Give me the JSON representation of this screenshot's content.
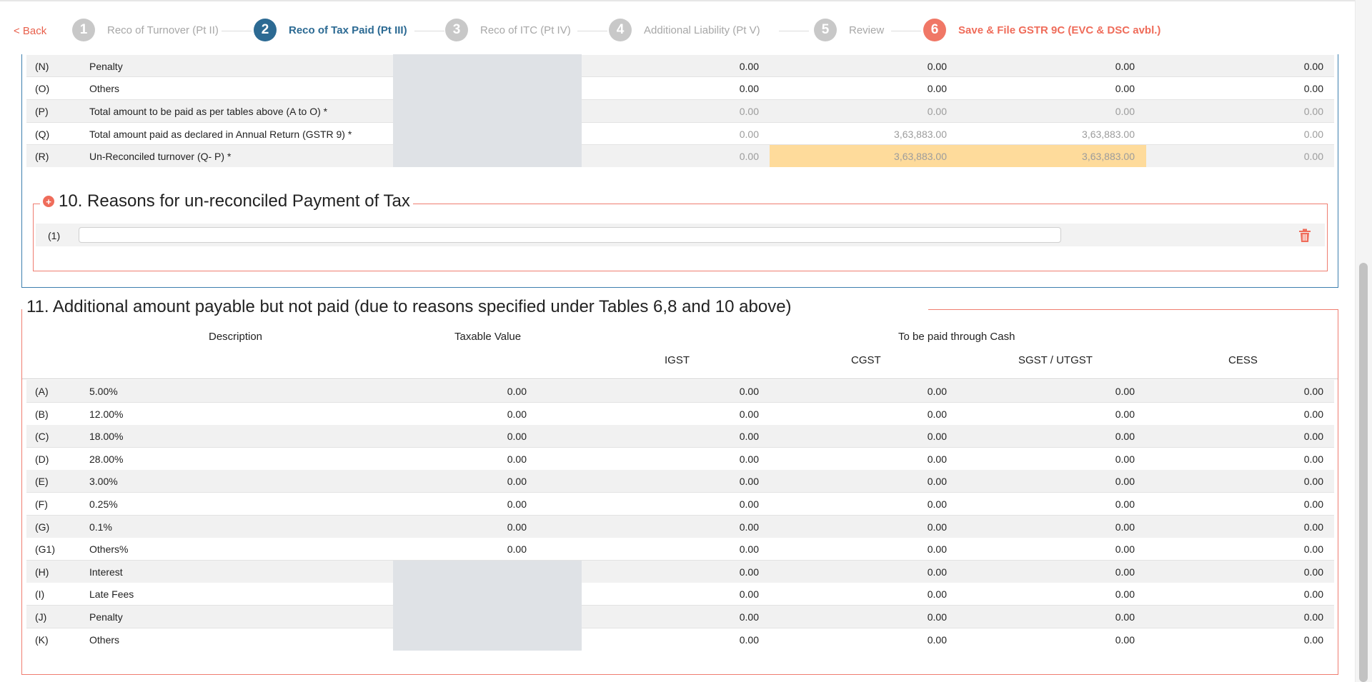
{
  "nav": {
    "back_label": "< Back",
    "steps": [
      {
        "num": "1",
        "label": "Reco of Turnover (Pt II)"
      },
      {
        "num": "2",
        "label": "Reco of Tax Paid (Pt III)"
      },
      {
        "num": "3",
        "label": "Reco of ITC (Pt IV)"
      },
      {
        "num": "4",
        "label": "Additional Liability (Pt V)"
      },
      {
        "num": "5",
        "label": "Review"
      },
      {
        "num": "6",
        "label": "Save & File GSTR 9C (EVC & DSC avbl.)"
      }
    ]
  },
  "section9": {
    "rows": [
      {
        "code": "(N)",
        "desc": "Penalty",
        "v1": "0.00",
        "v2": "0.00",
        "v3": "0.00",
        "v4": "0.00"
      },
      {
        "code": "(O)",
        "desc": "Others",
        "v1": "0.00",
        "v2": "0.00",
        "v3": "0.00",
        "v4": "0.00"
      },
      {
        "code": "(P)",
        "desc": "Total amount to be paid as per tables above (A to O) *",
        "v1": "0.00",
        "v2": "0.00",
        "v3": "0.00",
        "v4": "0.00"
      },
      {
        "code": "(Q)",
        "desc": "Total amount paid as declared in Annual Return (GSTR 9) *",
        "v1": "0.00",
        "v2": "3,63,883.00",
        "v3": "3,63,883.00",
        "v4": "0.00"
      },
      {
        "code": "(R)",
        "desc": "Un-Reconciled turnover (Q- P) *",
        "v1": "0.00",
        "v2": "3,63,883.00",
        "v3": "3,63,883.00",
        "v4": "0.00"
      }
    ]
  },
  "section10": {
    "title": "10. Reasons for un-reconciled Payment of Tax",
    "plus_glyph": "+",
    "reason_code": "(1)",
    "reason_value": ""
  },
  "section11": {
    "title": "11. Additional amount payable but not paid (due to reasons specified under Tables 6,8 and 10 above)",
    "headers": {
      "description": "Description",
      "taxable_value": "Taxable Value",
      "group": "To be paid through Cash",
      "igst": "IGST",
      "cgst": "CGST",
      "sgst": "SGST / UTGST",
      "cess": "CESS"
    },
    "rows": [
      {
        "code": "(A)",
        "desc": "5.00%",
        "taxable": "0.00",
        "igst": "0.00",
        "cgst": "0.00",
        "sgst": "0.00",
        "cess": "0.00"
      },
      {
        "code": "(B)",
        "desc": "12.00%",
        "taxable": "0.00",
        "igst": "0.00",
        "cgst": "0.00",
        "sgst": "0.00",
        "cess": "0.00"
      },
      {
        "code": "(C)",
        "desc": "18.00%",
        "taxable": "0.00",
        "igst": "0.00",
        "cgst": "0.00",
        "sgst": "0.00",
        "cess": "0.00"
      },
      {
        "code": "(D)",
        "desc": "28.00%",
        "taxable": "0.00",
        "igst": "0.00",
        "cgst": "0.00",
        "sgst": "0.00",
        "cess": "0.00"
      },
      {
        "code": "(E)",
        "desc": "3.00%",
        "taxable": "0.00",
        "igst": "0.00",
        "cgst": "0.00",
        "sgst": "0.00",
        "cess": "0.00"
      },
      {
        "code": "(F)",
        "desc": "0.25%",
        "taxable": "0.00",
        "igst": "0.00",
        "cgst": "0.00",
        "sgst": "0.00",
        "cess": "0.00"
      },
      {
        "code": "(G)",
        "desc": "0.1%",
        "taxable": "0.00",
        "igst": "0.00",
        "cgst": "0.00",
        "sgst": "0.00",
        "cess": "0.00"
      },
      {
        "code": "(G1)",
        "desc": "Others%",
        "taxable": "0.00",
        "igst": "0.00",
        "cgst": "0.00",
        "sgst": "0.00",
        "cess": "0.00"
      },
      {
        "code": "(H)",
        "desc": "Interest",
        "taxable": "",
        "igst": "0.00",
        "cgst": "0.00",
        "sgst": "0.00",
        "cess": "0.00"
      },
      {
        "code": "(I)",
        "desc": "Late Fees",
        "taxable": "",
        "igst": "0.00",
        "cgst": "0.00",
        "sgst": "0.00",
        "cess": "0.00"
      },
      {
        "code": "(J)",
        "desc": "Penalty",
        "taxable": "",
        "igst": "0.00",
        "cgst": "0.00",
        "sgst": "0.00",
        "cess": "0.00"
      },
      {
        "code": "(K)",
        "desc": "Others",
        "taxable": "",
        "igst": "0.00",
        "cgst": "0.00",
        "sgst": "0.00",
        "cess": "0.00"
      }
    ]
  },
  "colors": {
    "accent_blue": "#2c6a93",
    "accent_red": "#ef6c5a",
    "highlight": "#fedb9b"
  }
}
